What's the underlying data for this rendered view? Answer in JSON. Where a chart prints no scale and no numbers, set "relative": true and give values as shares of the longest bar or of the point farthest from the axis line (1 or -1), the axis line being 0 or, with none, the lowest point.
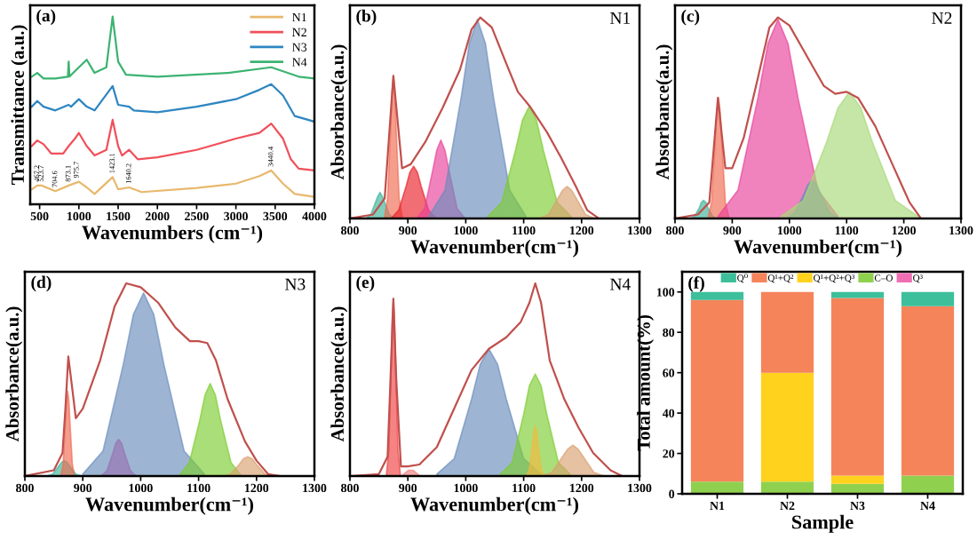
{
  "chart_data": [
    {
      "type": "line",
      "title": "(a)",
      "xlabel": "Wavenumbers (cm⁻¹)",
      "ylabel": "Transmittance (a.u.)",
      "relative": true,
      "xlim": [
        380,
        4000
      ],
      "xticks": [
        500,
        1000,
        1500,
        2000,
        2500,
        3000,
        3500,
        4000
      ],
      "tick_labels": "x",
      "legend": "top right",
      "series": [
        {
          "name": "N1",
          "color": "#e8b86d",
          "x": [
            400,
            470,
            525,
            700,
            870,
            1000,
            1100,
            1200,
            1430,
            1500,
            1640,
            1800,
            2500,
            3000,
            3300,
            3450,
            3600,
            3750,
            4000
          ],
          "values": [
            0.08,
            0.1,
            0.1,
            0.07,
            0.1,
            0.12,
            0.09,
            0.055,
            0.145,
            0.08,
            0.09,
            0.065,
            0.087,
            0.11,
            0.15,
            0.18,
            0.11,
            0.055,
            0.04
          ]
        },
        {
          "name": "N2",
          "color": "#f0505a",
          "x": [
            400,
            470,
            550,
            650,
            800,
            870,
            950,
            1000,
            1100,
            1200,
            1350,
            1430,
            1500,
            1550,
            1640,
            1750,
            2000,
            2500,
            3000,
            3300,
            3450,
            3600,
            3700,
            3800,
            4000
          ],
          "values": [
            0.31,
            0.34,
            0.32,
            0.27,
            0.27,
            0.31,
            0.35,
            0.38,
            0.31,
            0.26,
            0.29,
            0.45,
            0.31,
            0.26,
            0.29,
            0.24,
            0.25,
            0.29,
            0.35,
            0.38,
            0.43,
            0.35,
            0.24,
            0.19,
            0.18
          ]
        },
        {
          "name": "N3",
          "color": "#2e86c1",
          "x": [
            400,
            470,
            550,
            700,
            870,
            900,
            1000,
            1100,
            1200,
            1430,
            1500,
            1640,
            1700,
            2000,
            2500,
            3000,
            3300,
            3450,
            3600,
            3750,
            4000
          ],
          "values": [
            0.52,
            0.55,
            0.52,
            0.5,
            0.53,
            0.52,
            0.56,
            0.52,
            0.5,
            0.63,
            0.53,
            0.52,
            0.5,
            0.49,
            0.52,
            0.56,
            0.61,
            0.64,
            0.58,
            0.47,
            0.44
          ]
        },
        {
          "name": "N4",
          "color": "#3cb371",
          "x": [
            400,
            470,
            550,
            700,
            860,
            870,
            880,
            1000,
            1100,
            1200,
            1350,
            1430,
            1500,
            1600,
            2000,
            2900,
            3450,
            3800,
            4000
          ],
          "values": [
            0.68,
            0.7,
            0.67,
            0.67,
            0.68,
            0.76,
            0.68,
            0.73,
            0.77,
            0.7,
            0.73,
            1.0,
            0.76,
            0.69,
            0.68,
            0.7,
            0.73,
            0.68,
            0.67
          ]
        }
      ],
      "annotations": [
        {
          "text": "467.2",
          "x": 470,
          "y": 0.1
        },
        {
          "text": "523.7",
          "x": 525,
          "y": 0.1
        },
        {
          "text": "704.6",
          "x": 700,
          "y": 0.07
        },
        {
          "text": "873.1",
          "x": 870,
          "y": 0.1
        },
        {
          "text": "975.7",
          "x": 975,
          "y": 0.12
        },
        {
          "text": "1423.1",
          "x": 1430,
          "y": 0.145
        },
        {
          "text": "1640.2",
          "x": 1640,
          "y": 0.09
        },
        {
          "text": "3440.4",
          "x": 3450,
          "y": 0.18
        }
      ]
    },
    {
      "type": "area",
      "title": "(b)",
      "subtitle": "N1",
      "xlabel": "Wavenumber(cm⁻¹)",
      "ylabel": "Absorbance(a.u.)",
      "relative": true,
      "xlim": [
        800,
        1300
      ],
      "xticks": [
        800,
        900,
        1000,
        1100,
        1200,
        1300
      ],
      "tick_labels": "x",
      "series": [
        {
          "color": "#3cb39a",
          "x": [
            828,
            836,
            844,
            848,
            852,
            856,
            860,
            868,
            876
          ],
          "values": [
            0,
            0.02,
            0.08,
            0.11,
            0.13,
            0.11,
            0.08,
            0.02,
            0
          ]
        },
        {
          "color": "#f06a50",
          "x": [
            860,
            865,
            870,
            872.5,
            875,
            877.5,
            880,
            885,
            890
          ],
          "values": [
            0.01,
            0.1,
            0.43,
            0.62,
            0.71,
            0.62,
            0.43,
            0.1,
            0.01
          ]
        },
        {
          "color": "#e8202a",
          "x": [
            871,
            884,
            897,
            903.5,
            910,
            916.5,
            923,
            936,
            949
          ],
          "values": [
            0,
            0.04,
            0.16,
            0.23,
            0.26,
            0.23,
            0.16,
            0.04,
            0
          ]
        },
        {
          "color": "#e8409a",
          "x": [
            915,
            929,
            943,
            950,
            957,
            964,
            971,
            985,
            999
          ],
          "values": [
            0,
            0.05,
            0.24,
            0.34,
            0.39,
            0.34,
            0.24,
            0.05,
            0
          ]
        },
        {
          "color": "#6a8cbc",
          "x": [
            936,
            964,
            992,
            1006,
            1020,
            1034,
            1048,
            1076,
            1104
          ],
          "values": [
            0.01,
            0.14,
            0.6,
            0.87,
            0.99,
            0.87,
            0.6,
            0.14,
            0.01
          ]
        },
        {
          "color": "#7ccc30",
          "x": [
            1038,
            1062,
            1086,
            1098,
            1110,
            1122,
            1134,
            1158,
            1182
          ],
          "values": [
            0.01,
            0.08,
            0.34,
            0.49,
            0.56,
            0.49,
            0.34,
            0.08,
            0.01
          ]
        },
        {
          "color": "#d9a070",
          "x": [
            1127,
            1143,
            1159,
            1167,
            1175,
            1183,
            1191,
            1207,
            1223
          ],
          "values": [
            0,
            0.02,
            0.1,
            0.14,
            0.16,
            0.14,
            0.1,
            0.02,
            0
          ]
        },
        {
          "type": "line",
          "color": "#c0504d",
          "x": [
            800,
            840,
            860,
            875,
            890,
            905,
            930,
            960,
            990,
            1010,
            1025,
            1045,
            1070,
            1090,
            1110,
            1140,
            1165,
            1190,
            1210,
            1230
          ],
          "values": [
            0,
            0.02,
            0.1,
            0.71,
            0.25,
            0.27,
            0.38,
            0.55,
            0.74,
            0.94,
            1.0,
            0.95,
            0.77,
            0.63,
            0.56,
            0.43,
            0.3,
            0.16,
            0.04,
            0
          ]
        }
      ]
    },
    {
      "type": "area",
      "title": "(c)",
      "subtitle": "N2",
      "xlabel": "Wavenumber(cm⁻¹)",
      "ylabel": "Absorbance(a.u.)",
      "relative": true,
      "xlim": [
        800,
        1300
      ],
      "xticks": [
        800,
        900,
        1000,
        1100,
        1200,
        1300
      ],
      "tick_labels": "x",
      "series": [
        {
          "color": "#3cb39a",
          "x": [
            826,
            834,
            842,
            846,
            850,
            854,
            858,
            866,
            874
          ],
          "values": [
            0,
            0.01,
            0.05,
            0.08,
            0.09,
            0.08,
            0.05,
            0.01,
            0
          ]
        },
        {
          "color": "#f06a50",
          "x": [
            858,
            864,
            870,
            873,
            876,
            879,
            882,
            888,
            894
          ],
          "values": [
            0.01,
            0.08,
            0.37,
            0.53,
            0.6,
            0.53,
            0.37,
            0.08,
            0.01
          ]
        },
        {
          "color": "#e8409a",
          "x": [
            875,
            910,
            945,
            962.5,
            980,
            997.5,
            1015,
            1050,
            1085
          ],
          "values": [
            0.01,
            0.14,
            0.6,
            0.87,
            0.99,
            0.87,
            0.6,
            0.14,
            0.01
          ]
        },
        {
          "color": "#6a8cbc",
          "x": [
            995,
            1010,
            1025,
            1032.5,
            1040,
            1047.5,
            1055,
            1070,
            1085
          ],
          "values": [
            0,
            0.03,
            0.12,
            0.17,
            0.19,
            0.17,
            0.12,
            0.03,
            0
          ]
        },
        {
          "color": "#a8d878",
          "x": [
            985,
            1025,
            1065,
            1085,
            1105,
            1125,
            1145,
            1185,
            1225
          ],
          "values": [
            0.01,
            0.09,
            0.38,
            0.55,
            0.63,
            0.55,
            0.38,
            0.09,
            0.01
          ]
        },
        {
          "type": "line",
          "color": "#c0504d",
          "x": [
            800,
            840,
            860,
            875,
            888,
            900,
            920,
            945,
            965,
            980,
            1000,
            1020,
            1040,
            1060,
            1080,
            1100,
            1120,
            1150,
            1180,
            1210,
            1230
          ],
          "values": [
            0,
            0.02,
            0.08,
            0.6,
            0.25,
            0.25,
            0.4,
            0.7,
            0.95,
            1.0,
            0.96,
            0.86,
            0.76,
            0.66,
            0.62,
            0.63,
            0.6,
            0.46,
            0.27,
            0.08,
            0
          ]
        }
      ]
    },
    {
      "type": "area",
      "title": "(d)",
      "subtitle": "N3",
      "xlabel": "Wavenumber(cm⁻¹)",
      "ylabel": "Absorbance(a.u.)",
      "relative": true,
      "xlim": [
        800,
        1300
      ],
      "xticks": [
        800,
        900,
        1000,
        1100,
        1200,
        1300
      ],
      "tick_labels": "x",
      "series": [
        {
          "color": "#3cb39a",
          "x": [
            838,
            848,
            858,
            863,
            868,
            873,
            878,
            888,
            898
          ],
          "values": [
            0,
            0.01,
            0.05,
            0.07,
            0.08,
            0.07,
            0.05,
            0.01,
            0
          ]
        },
        {
          "color": "#f06a50",
          "x": [
            862,
            866,
            870,
            872,
            874,
            876,
            878,
            882,
            886
          ],
          "values": [
            0,
            0.06,
            0.27,
            0.39,
            0.44,
            0.39,
            0.27,
            0.06,
            0
          ]
        },
        {
          "color": "#e8409a",
          "x": [
            932,
            942,
            952,
            957,
            962,
            967,
            972,
            982,
            992
          ],
          "values": [
            0,
            0.03,
            0.12,
            0.17,
            0.19,
            0.17,
            0.12,
            0.03,
            0
          ]
        },
        {
          "color": "#6a8cbc",
          "x": [
            900,
            935,
            970,
            987.5,
            1005,
            1022.5,
            1040,
            1075,
            1110
          ],
          "values": [
            0.01,
            0.13,
            0.58,
            0.84,
            0.95,
            0.84,
            0.58,
            0.13,
            0.01
          ]
        },
        {
          "color": "#7ccc30",
          "x": [
            1066,
            1084,
            1102,
            1111,
            1120,
            1129,
            1138,
            1156,
            1174
          ],
          "values": [
            0,
            0.07,
            0.29,
            0.42,
            0.48,
            0.42,
            0.29,
            0.07,
            0
          ]
        },
        {
          "color": "#d9a070",
          "x": [
            1140,
            1155,
            1170,
            1177.5,
            1185,
            1192.5,
            1200,
            1215,
            1230
          ],
          "values": [
            0,
            0.01,
            0.06,
            0.09,
            0.1,
            0.09,
            0.06,
            0.01,
            0
          ]
        },
        {
          "type": "line",
          "color": "#c0504d",
          "x": [
            800,
            850,
            865,
            870,
            875,
            882,
            888,
            900,
            930,
            955,
            975,
            1000,
            1030,
            1060,
            1085,
            1100,
            1115,
            1130,
            1150,
            1180,
            1200,
            1220,
            1240
          ],
          "values": [
            0,
            0.03,
            0.12,
            0.35,
            0.62,
            0.45,
            0.3,
            0.35,
            0.6,
            0.88,
            1.0,
            0.98,
            0.9,
            0.77,
            0.7,
            0.7,
            0.69,
            0.6,
            0.4,
            0.18,
            0.08,
            0.01,
            0
          ]
        }
      ]
    },
    {
      "type": "area",
      "title": "(e)",
      "subtitle": "N4",
      "xlabel": "Wavenumber(cm⁻¹)",
      "ylabel": "Absorbance(a.u.)",
      "relative": true,
      "xlim": [
        800,
        1300
      ],
      "xticks": [
        800,
        900,
        1000,
        1100,
        1200,
        1300
      ],
      "tick_labels": "x",
      "series": [
        {
          "color": "#f04040",
          "x": [
            863,
            867,
            871,
            873,
            875,
            877,
            879,
            883,
            887
          ],
          "values": [
            0.01,
            0.13,
            0.56,
            0.81,
            0.92,
            0.81,
            0.56,
            0.13,
            0.01
          ]
        },
        {
          "color": "#f08080",
          "x": [
            881,
            889,
            897,
            901,
            905,
            909,
            913,
            921,
            929
          ],
          "values": [
            0,
            0,
            0.02,
            0.03,
            0.03,
            0.03,
            0.02,
            0,
            0
          ]
        },
        {
          "color": "#6a8cbc",
          "x": [
            950,
            980,
            1010,
            1025,
            1040,
            1055,
            1070,
            1100,
            1130
          ],
          "values": [
            0.01,
            0.09,
            0.4,
            0.58,
            0.66,
            0.58,
            0.4,
            0.09,
            0.01
          ]
        },
        {
          "color": "#7ccc30",
          "x": [
            1060,
            1080,
            1100,
            1110,
            1120,
            1130,
            1140,
            1160,
            1180
          ],
          "values": [
            0.01,
            0.07,
            0.32,
            0.47,
            0.53,
            0.47,
            0.32,
            0.07,
            0.01
          ]
        },
        {
          "color": "#f5b841",
          "x": [
            1105,
            1110,
            1115,
            1117.5,
            1120,
            1122.5,
            1125,
            1130,
            1135
          ],
          "values": [
            0,
            0.04,
            0.16,
            0.23,
            0.26,
            0.23,
            0.16,
            0.04,
            0
          ]
        },
        {
          "color": "#d9a070",
          "x": [
            1131,
            1149,
            1167,
            1176,
            1185,
            1194,
            1203,
            1221,
            1239
          ],
          "values": [
            0,
            0.02,
            0.1,
            0.14,
            0.16,
            0.14,
            0.1,
            0.02,
            0
          ]
        },
        {
          "type": "line",
          "color": "#c0504d",
          "x": [
            800,
            850,
            865,
            870,
            875,
            880,
            888,
            900,
            920,
            950,
            980,
            1010,
            1040,
            1070,
            1095,
            1110,
            1120,
            1130,
            1145,
            1170,
            1195,
            1220,
            1250,
            1270
          ],
          "values": [
            0,
            0.01,
            0.1,
            0.5,
            0.92,
            0.5,
            0.05,
            0.05,
            0.06,
            0.15,
            0.35,
            0.55,
            0.66,
            0.72,
            0.8,
            0.9,
            1.0,
            0.9,
            0.6,
            0.4,
            0.25,
            0.12,
            0.03,
            0
          ]
        }
      ]
    },
    {
      "type": "bar",
      "stacked": true,
      "title": "(f)",
      "xlabel": "Sample",
      "ylabel": "Total amount(%)",
      "categories": [
        "N1",
        "N2",
        "N3",
        "N4"
      ],
      "ylim": [
        0,
        110
      ],
      "yticks": [
        0,
        20,
        40,
        60,
        80,
        100
      ],
      "legend": "top",
      "series": [
        {
          "name": "Q³",
          "color": "#f06eb4",
          "values": [
            0,
            0,
            0,
            0
          ]
        },
        {
          "name": "C–O",
          "color": "#8fd14f",
          "values": [
            6,
            6,
            5,
            9
          ]
        },
        {
          "name": "Q¹+Q²+Q³",
          "color": "#ffd21e",
          "values": [
            0,
            54,
            4,
            0
          ]
        },
        {
          "name": "Q¹+Q²",
          "color": "#f5845a",
          "values": [
            90,
            40,
            88,
            84
          ]
        },
        {
          "name": "Q⁰",
          "color": "#3cbf9a",
          "values": [
            4,
            0,
            3,
            7
          ]
        }
      ]
    }
  ]
}
